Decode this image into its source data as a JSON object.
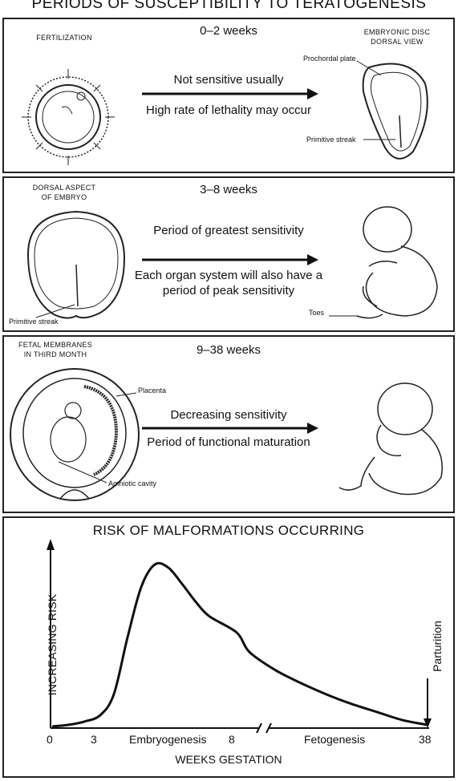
{
  "title": "PERIODS OF SUSCEPTIBILITY TO TERATOGENESIS",
  "panels": [
    {
      "left_caption": "FERTILIZATION",
      "weeks": "0–2 weeks",
      "line1": "Not sensitive usually",
      "line2": "High rate of lethality may occur",
      "right_caption_1": "EMBRYONIC DISC",
      "right_caption_2": "DORSAL VIEW",
      "label_a": "Prochordal plate",
      "label_b": "Primitive streak"
    },
    {
      "left_caption_1": "DORSAL ASPECT",
      "left_caption_2": "OF EMBRYO",
      "weeks": "3–8 weeks",
      "line1": "Period of greatest sensitivity",
      "line2": "Each organ system will also have a period of peak sensitivity",
      "label_a": "Primitive streak",
      "label_b": "Toes"
    },
    {
      "left_caption_1": "FETAL MEMBRANES",
      "left_caption_2": "IN THIRD MONTH",
      "weeks": "9–38 weeks",
      "line1": "Decreasing sensitivity",
      "line2": "Period of functional maturation",
      "label_a": "Placenta",
      "label_b": "Amniotic cavity"
    }
  ],
  "chart_data": {
    "type": "line",
    "title": "RISK OF MALFORMATIONS OCCURRING",
    "xlabel": "WEEKS GESTATION",
    "ylabel": "INCREASING RISK",
    "x_ticks": [
      "0",
      "3",
      "8",
      "38"
    ],
    "x_regions": [
      "Embryogenesis",
      "Fetogenesis"
    ],
    "annotation": "Parturition",
    "axis_break": true,
    "series": [
      {
        "x": [
          0,
          1,
          2,
          3,
          3.5,
          4,
          4.5,
          5,
          5.5,
          6,
          6.5,
          7,
          8,
          10,
          14,
          18,
          22,
          26,
          30,
          34,
          38
        ],
        "y": [
          0,
          0.01,
          0.03,
          0.07,
          0.2,
          0.55,
          0.86,
          1.0,
          0.98,
          0.88,
          0.77,
          0.68,
          0.58,
          0.46,
          0.35,
          0.27,
          0.2,
          0.14,
          0.09,
          0.04,
          0.01
        ]
      }
    ]
  }
}
